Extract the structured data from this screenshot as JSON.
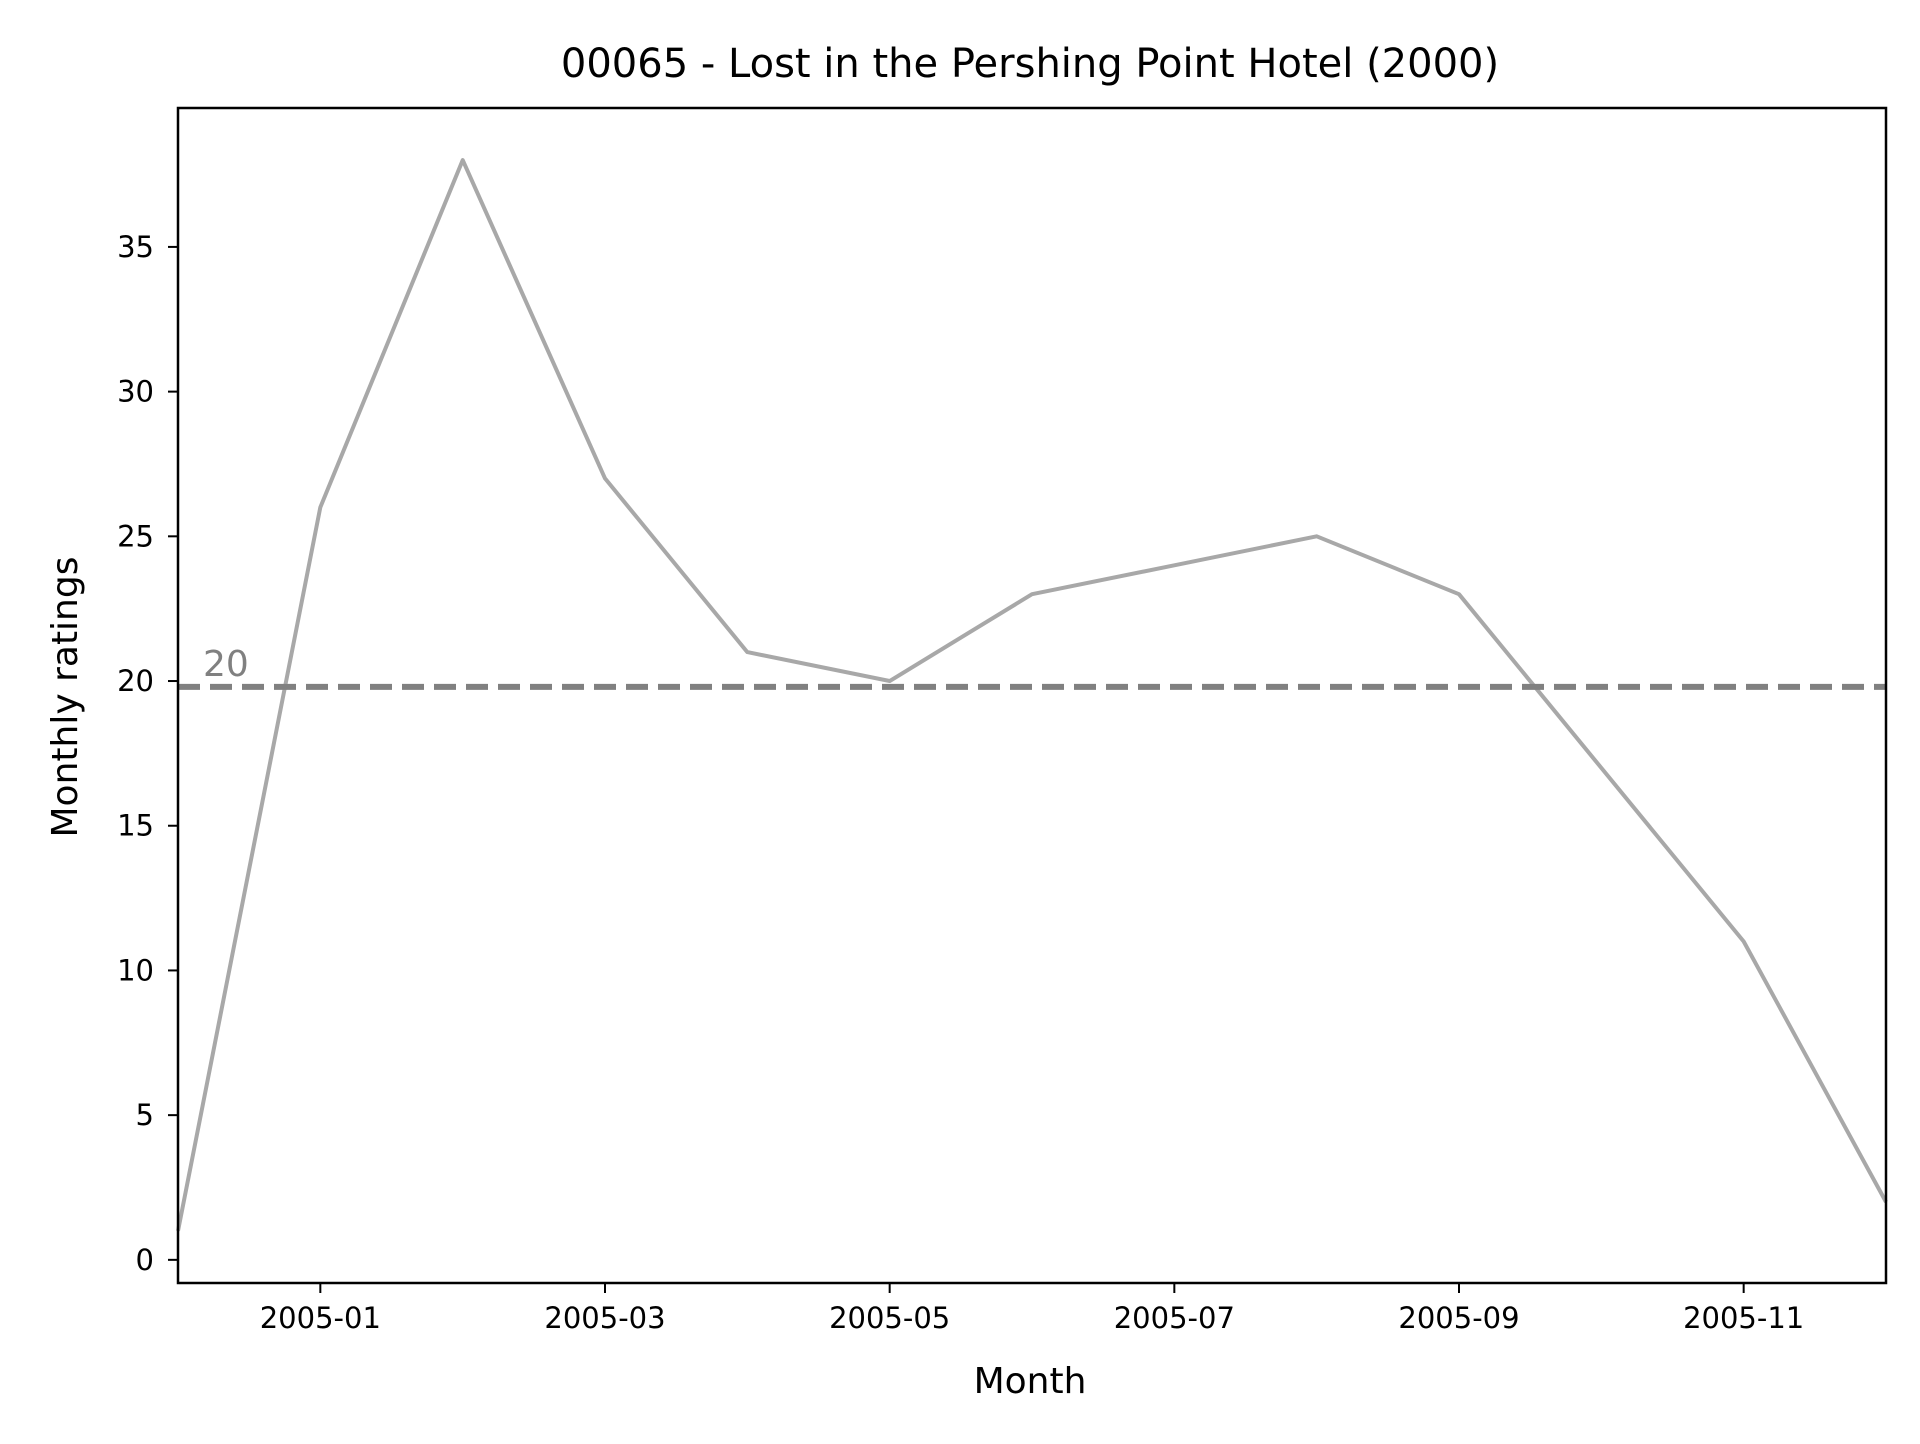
{
  "chart_data": {
    "type": "line",
    "title": "00065 - Lost in the Pershing Point Hotel (2000)",
    "xlabel": "Month",
    "ylabel": "Monthly ratings",
    "x": [
      "2004-12",
      "2005-01",
      "2005-02",
      "2005-03",
      "2005-04",
      "2005-05",
      "2005-06",
      "2005-07",
      "2005-08",
      "2005-09",
      "2005-10",
      "2005-11",
      "2005-12"
    ],
    "series": [
      {
        "values": [
          1,
          26,
          38,
          27,
          21,
          20,
          23,
          24,
          25,
          23,
          17,
          11,
          2
        ],
        "color": "#a8a8a8"
      }
    ],
    "xlim": [
      "2004-12",
      "2005-12"
    ],
    "ylim": [
      -0.8,
      39.8
    ],
    "x_ticks": [
      "2005-01",
      "2005-03",
      "2005-05",
      "2005-07",
      "2005-09",
      "2005-11"
    ],
    "y_ticks": [
      0,
      5,
      10,
      15,
      20,
      25,
      30,
      35
    ],
    "reference_line": {
      "value": 19.8,
      "label": "20",
      "style": "dashed",
      "color": "#808080"
    },
    "grid": false,
    "legend": "none"
  }
}
